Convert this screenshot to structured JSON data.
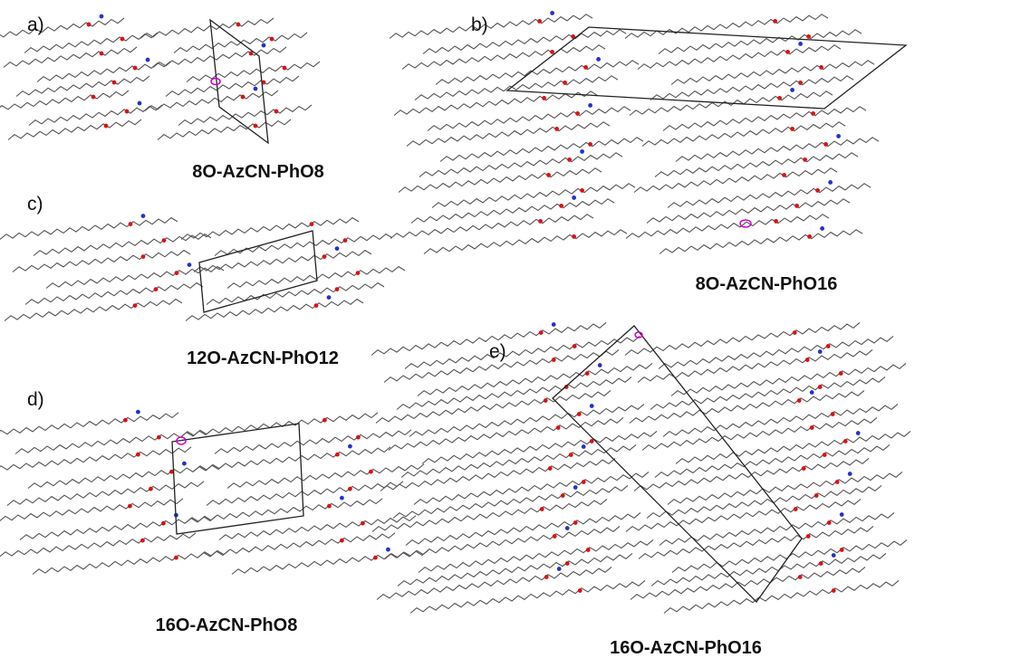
{
  "panels": [
    {
      "label": "a)",
      "caption": "8O-AzCN-PhO8"
    },
    {
      "label": "b)",
      "caption": "8O-AzCN-PhO16"
    },
    {
      "label": "c)",
      "caption": "12O-AzCN-PhO12"
    },
    {
      "label": "d)",
      "caption": "16O-AzCN-PhO8"
    },
    {
      "label": "e)",
      "caption": "16O-AzCN-PhO16"
    }
  ]
}
